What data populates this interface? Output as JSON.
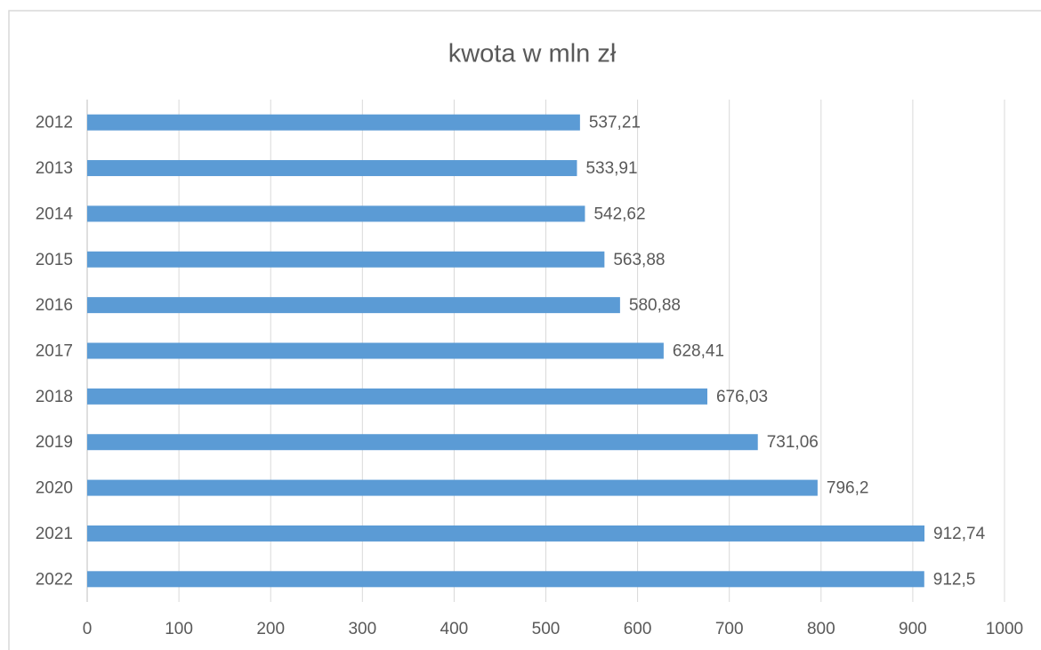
{
  "chart_data": {
    "type": "bar",
    "orientation": "horizontal",
    "title": "kwota w mln zł",
    "categories": [
      "2012",
      "2013",
      "2014",
      "2015",
      "2016",
      "2017",
      "2018",
      "2019",
      "2020",
      "2021",
      "2022"
    ],
    "values": [
      537.21,
      533.91,
      542.62,
      563.88,
      580.88,
      628.41,
      676.03,
      731.06,
      796.2,
      912.74,
      912.5
    ],
    "value_labels": [
      "537,21",
      "533,91",
      "542,62",
      "563,88",
      "580,88",
      "628,41",
      "676,03",
      "731,06",
      "796,2",
      "912,74",
      "912,5"
    ],
    "color": "#5b9bd5",
    "xlim": [
      0,
      1000
    ],
    "xticks": [
      0,
      100,
      200,
      300,
      400,
      500,
      600,
      700,
      800,
      900,
      1000
    ],
    "grid": true
  }
}
